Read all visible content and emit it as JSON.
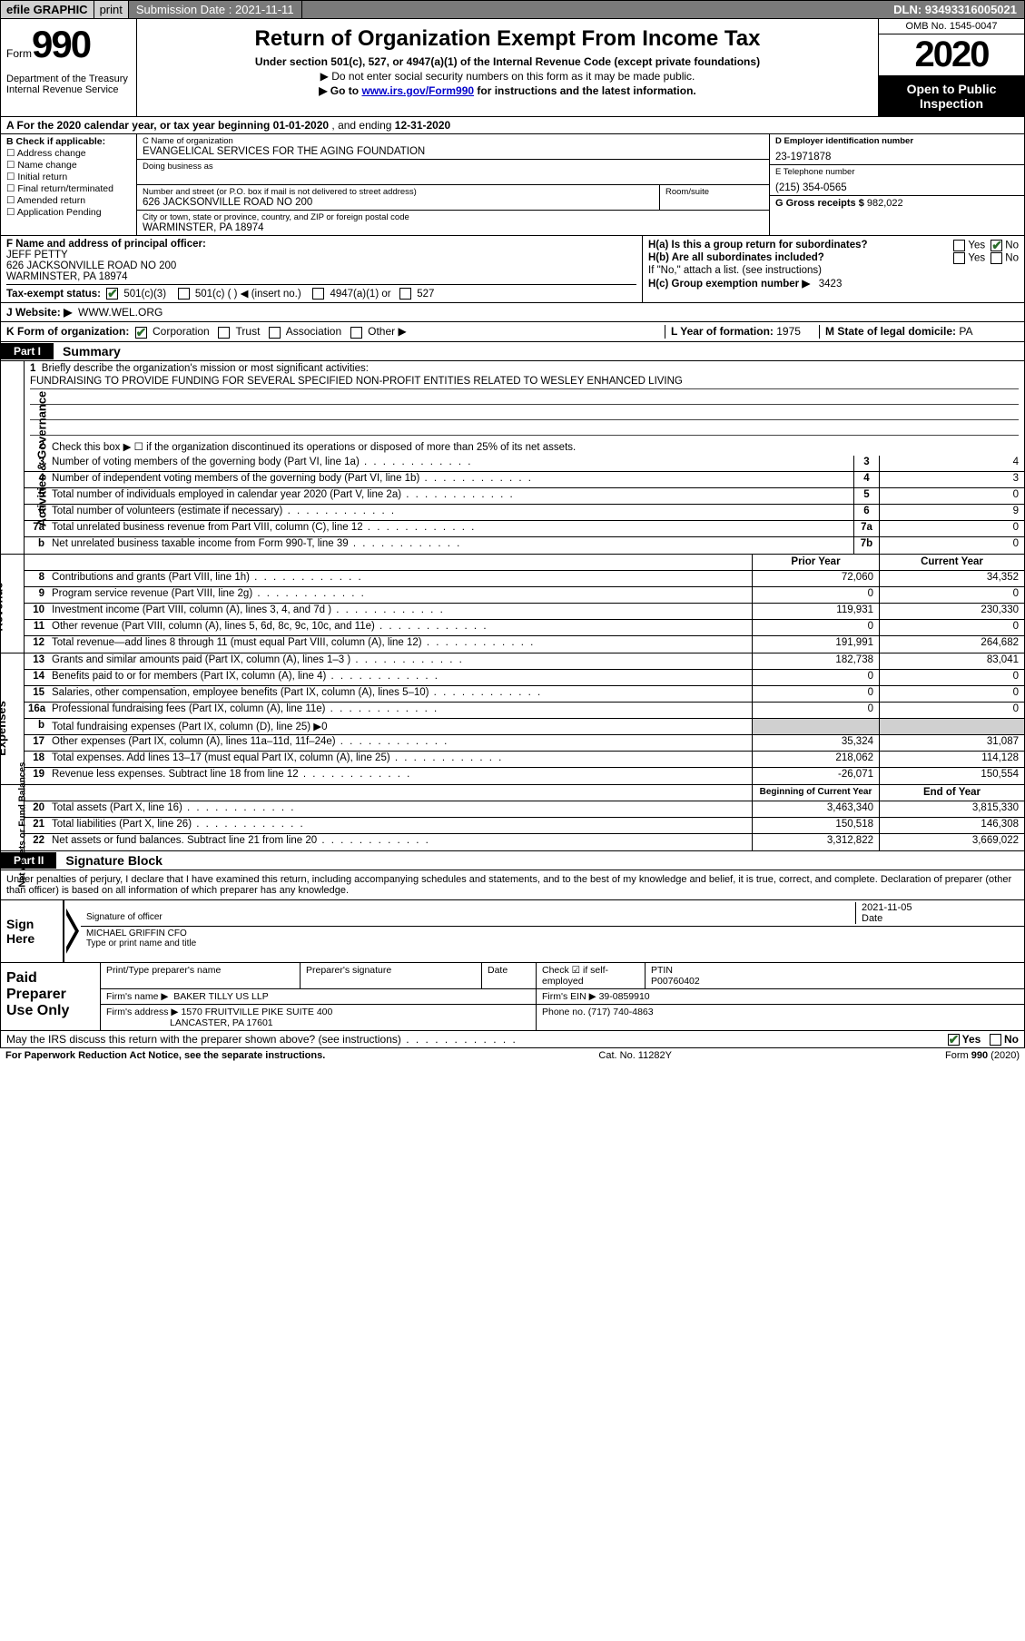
{
  "topbar": {
    "efile": "efile GRAPHIC",
    "print": "print",
    "sub_label": "Submission Date : ",
    "sub_date": "2021-11-11",
    "dln": "DLN: 93493316005021"
  },
  "header": {
    "form_word": "Form",
    "form_num": "990",
    "dept": "Department of the Treasury\nInternal Revenue Service",
    "title": "Return of Organization Exempt From Income Tax",
    "sub1": "Under section 501(c), 527, or 4947(a)(1) of the Internal Revenue Code (except private foundations)",
    "sub2": "▶ Do not enter social security numbers on this form as it may be made public.",
    "sub3_pre": "▶ Go to ",
    "sub3_link": "www.irs.gov/Form990",
    "sub3_post": " for instructions and the latest information.",
    "omb": "OMB No. 1545-0047",
    "year": "2020",
    "open_pub": "Open to Public Inspection"
  },
  "lineA": {
    "pre": "A For the 2020 calendar year, or tax year beginning ",
    "beg": "01-01-2020",
    "mid": "   , and ending ",
    "end": "12-31-2020"
  },
  "colB": {
    "hdr": "B Check if applicable:",
    "items": [
      "Address change",
      "Name change",
      "Initial return",
      "Final return/terminated",
      "Amended return",
      "Application Pending"
    ]
  },
  "colC": {
    "name_lbl": "C Name of organization",
    "name": "EVANGELICAL SERVICES FOR THE AGING FOUNDATION",
    "dba_lbl": "Doing business as",
    "addr_lbl": "Number and street (or P.O. box if mail is not delivered to street address)",
    "addr": "626 JACKSONVILLE ROAD NO 200",
    "room_lbl": "Room/suite",
    "city_lbl": "City or town, state or province, country, and ZIP or foreign postal code",
    "city": "WARMINSTER, PA  18974"
  },
  "colD": {
    "ein_lbl": "D Employer identification number",
    "ein": "23-1971878",
    "tel_lbl": "E Telephone number",
    "tel": "(215) 354-0565",
    "gross_lbl": "G Gross receipts $ ",
    "gross": "982,022"
  },
  "rowF": {
    "lbl": "F Name and address of principal officer:",
    "name": "JEFF PETTY",
    "addr1": "626 JACKSONVILLE ROAD NO 200",
    "addr2": "WARMINSTER, PA  18974"
  },
  "rowH": {
    "a": "H(a)  Is this a group return for subordinates?",
    "b": "H(b)  Are all subordinates included?",
    "note": "If \"No,\" attach a list. (see instructions)",
    "c": "H(c)  Group exemption number ▶",
    "cval": "3423",
    "yes": "Yes",
    "no": "No"
  },
  "rowI": {
    "lbl": "Tax-exempt status:",
    "opts": [
      "501(c)(3)",
      "501(c) (  ) ◀ (insert no.)",
      "4947(a)(1) or",
      "527"
    ]
  },
  "rowJ": {
    "lbl": "J   Website: ▶",
    "val": "WWW.WEL.ORG"
  },
  "rowK": {
    "lbl": "K Form of organization:",
    "opts": [
      "Corporation",
      "Trust",
      "Association",
      "Other ▶"
    ],
    "L_lbl": "L Year of formation: ",
    "L_val": "1975",
    "M_lbl": "M State of legal domicile: ",
    "M_val": "PA"
  },
  "partI": {
    "tag": "Part I",
    "title": "Summary"
  },
  "gov": {
    "side": "Activities & Governance",
    "q1_lbl": "Briefly describe the organization's mission or most significant activities:",
    "q1_val": "FUNDRAISING TO PROVIDE FUNDING FOR SEVERAL SPECIFIED NON-PROFIT ENTITIES RELATED TO WESLEY ENHANCED LIVING",
    "q2": "Check this box ▶ ☐  if the organization discontinued its operations or disposed of more than 25% of its net assets.",
    "rows": [
      {
        "n": "3",
        "t": "Number of voting members of the governing body (Part VI, line 1a)",
        "c": "3",
        "v": "4"
      },
      {
        "n": "4",
        "t": "Number of independent voting members of the governing body (Part VI, line 1b)",
        "c": "4",
        "v": "3"
      },
      {
        "n": "5",
        "t": "Total number of individuals employed in calendar year 2020 (Part V, line 2a)",
        "c": "5",
        "v": "0"
      },
      {
        "n": "6",
        "t": "Total number of volunteers (estimate if necessary)",
        "c": "6",
        "v": "9"
      },
      {
        "n": "7a",
        "t": "Total unrelated business revenue from Part VIII, column (C), line 12",
        "c": "7a",
        "v": "0"
      },
      {
        "n": "b",
        "t": "Net unrelated business taxable income from Form 990-T, line 39",
        "c": "7b",
        "v": "0"
      }
    ]
  },
  "rev": {
    "side": "Revenue",
    "hdr_prior": "Prior Year",
    "hdr_curr": "Current Year",
    "rows": [
      {
        "n": "8",
        "t": "Contributions and grants (Part VIII, line 1h)",
        "p": "72,060",
        "c": "34,352"
      },
      {
        "n": "9",
        "t": "Program service revenue (Part VIII, line 2g)",
        "p": "0",
        "c": "0"
      },
      {
        "n": "10",
        "t": "Investment income (Part VIII, column (A), lines 3, 4, and 7d )",
        "p": "119,931",
        "c": "230,330"
      },
      {
        "n": "11",
        "t": "Other revenue (Part VIII, column (A), lines 5, 6d, 8c, 9c, 10c, and 11e)",
        "p": "0",
        "c": "0"
      },
      {
        "n": "12",
        "t": "Total revenue—add lines 8 through 11 (must equal Part VIII, column (A), line 12)",
        "p": "191,991",
        "c": "264,682"
      }
    ]
  },
  "exp": {
    "side": "Expenses",
    "rows": [
      {
        "n": "13",
        "t": "Grants and similar amounts paid (Part IX, column (A), lines 1–3 )",
        "p": "182,738",
        "c": "83,041"
      },
      {
        "n": "14",
        "t": "Benefits paid to or for members (Part IX, column (A), line 4)",
        "p": "0",
        "c": "0"
      },
      {
        "n": "15",
        "t": "Salaries, other compensation, employee benefits (Part IX, column (A), lines 5–10)",
        "p": "0",
        "c": "0"
      },
      {
        "n": "16a",
        "t": "Professional fundraising fees (Part IX, column (A), line 11e)",
        "p": "0",
        "c": "0"
      },
      {
        "n": "b",
        "t": "Total fundraising expenses (Part IX, column (D), line 25) ▶0",
        "p": "",
        "c": "",
        "shaded": true
      },
      {
        "n": "17",
        "t": "Other expenses (Part IX, column (A), lines 11a–11d, 11f–24e)",
        "p": "35,324",
        "c": "31,087"
      },
      {
        "n": "18",
        "t": "Total expenses. Add lines 13–17 (must equal Part IX, column (A), line 25)",
        "p": "218,062",
        "c": "114,128"
      },
      {
        "n": "19",
        "t": "Revenue less expenses. Subtract line 18 from line 12",
        "p": "-26,071",
        "c": "150,554"
      }
    ]
  },
  "net": {
    "side": "Net Assets or Fund Balances",
    "hdr_beg": "Beginning of Current Year",
    "hdr_end": "End of Year",
    "rows": [
      {
        "n": "20",
        "t": "Total assets (Part X, line 16)",
        "p": "3,463,340",
        "c": "3,815,330"
      },
      {
        "n": "21",
        "t": "Total liabilities (Part X, line 26)",
        "p": "150,518",
        "c": "146,308"
      },
      {
        "n": "22",
        "t": "Net assets or fund balances. Subtract line 21 from line 20",
        "p": "3,312,822",
        "c": "3,669,022"
      }
    ]
  },
  "partII": {
    "tag": "Part II",
    "title": "Signature Block"
  },
  "perjury": "Under penalties of perjury, I declare that I have examined this return, including accompanying schedules and statements, and to the best of my knowledge and belief, it is true, correct, and complete. Declaration of preparer (other than officer) is based on all information of which preparer has any knowledge.",
  "sign": {
    "label": "Sign Here",
    "sig_lbl": "Signature of officer",
    "date_lbl": "Date",
    "date": "2021-11-05",
    "name": "MICHAEL GRIFFIN CFO",
    "name_lbl": "Type or print name and title"
  },
  "prep": {
    "label": "Paid Preparer Use Only",
    "r1": {
      "c1": "Print/Type preparer's name",
      "c2": "Preparer's signature",
      "c3": "Date",
      "c4_lbl": "Check ☑ if self-employed",
      "c5_lbl": "PTIN",
      "c5": "P00760402"
    },
    "r2": {
      "lbl": "Firm's name   ▶",
      "val": "BAKER TILLY US LLP",
      "ein_lbl": "Firm's EIN ▶",
      "ein": "39-0859910"
    },
    "r3": {
      "lbl": "Firm's address ▶",
      "val1": "1570 FRUITVILLE PIKE SUITE 400",
      "val2": "LANCASTER, PA  17601",
      "ph_lbl": "Phone no. ",
      "ph": "(717) 740-4863"
    }
  },
  "discuss": {
    "q": "May the IRS discuss this return with the preparer shown above? (see instructions)",
    "yes": "Yes",
    "no": "No"
  },
  "footer": {
    "left": "For Paperwork Reduction Act Notice, see the separate instructions.",
    "mid": "Cat. No. 11282Y",
    "right": "Form 990 (2020)"
  }
}
